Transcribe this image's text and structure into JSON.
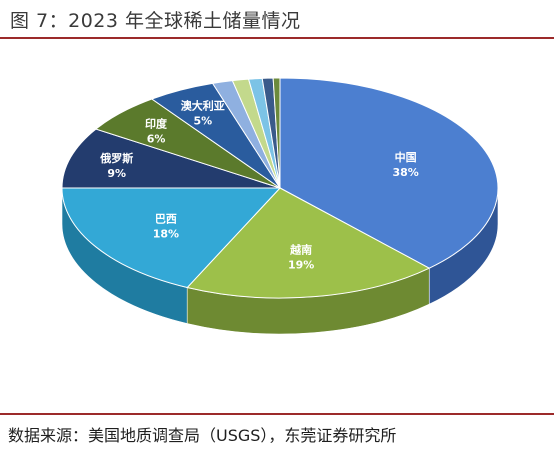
{
  "header": {
    "title": "图 7：2023 年全球稀土储量情况"
  },
  "footer": {
    "source": "数据来源：美国地质调查局（USGS），东莞证券研究所"
  },
  "chart_data": {
    "type": "pie",
    "style": "3d",
    "title": "",
    "slices": [
      {
        "label": "中国",
        "value": 38,
        "display": "38%",
        "color": "#4c7fd0",
        "side": "#2f5596",
        "text_color": "#ffffff"
      },
      {
        "label": "越南",
        "value": 19,
        "display": "19%",
        "color": "#9dc04a",
        "side": "#6e8a32",
        "text_color": "#ffffff"
      },
      {
        "label": "巴西",
        "value": 18,
        "display": "18%",
        "color": "#33a8d6",
        "side": "#1f7ca1",
        "text_color": "#ffffff"
      },
      {
        "label": "俄罗斯",
        "value": 9,
        "display": "9%",
        "color": "#233c6e",
        "side": "#16284d",
        "text_color": "#ffffff"
      },
      {
        "label": "印度",
        "value": 6,
        "display": "6%",
        "color": "#5b7a2c",
        "side": "#3f561e",
        "text_color": "#ffffff"
      },
      {
        "label": "澳大利亚",
        "value": 5,
        "display": "5%",
        "color": "#2a5c9e",
        "side": "#1b3e6d",
        "text_color": "#ffffff"
      },
      {
        "label": "",
        "value": 1.5,
        "display": "",
        "color": "#8fb0e0",
        "side": "#5f7fb0"
      },
      {
        "label": "",
        "value": 1.2,
        "display": "",
        "color": "#c3d98c",
        "side": "#8ea35b"
      },
      {
        "label": "",
        "value": 1.0,
        "display": "",
        "color": "#7cc3e6",
        "side": "#4e93b5"
      },
      {
        "label": "",
        "value": 0.8,
        "display": "",
        "color": "#3a5a8a",
        "side": "#263d60"
      },
      {
        "label": "",
        "value": 0.5,
        "display": "",
        "color": "#6c8a3c",
        "side": "#4a6228"
      }
    ]
  }
}
